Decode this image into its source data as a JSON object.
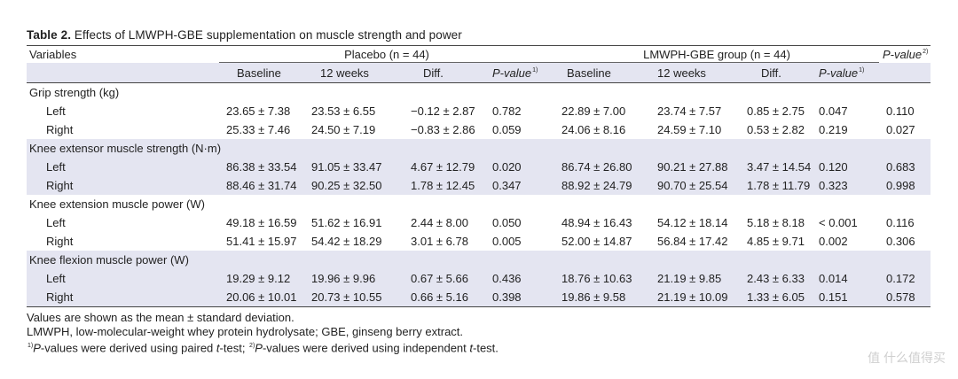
{
  "caption": {
    "label": "Table 2.",
    "text": " Effects of LMWPH-GBE supplementation on muscle strength and power"
  },
  "header": {
    "variables": "Variables",
    "placebo_group": "Placebo (n = 44)",
    "lmwph_group": "LMWPH-GBE group (n = 44)",
    "pvalue_main": "P-value",
    "pvalue_main_sup": "2)",
    "sub": {
      "baseline": "Baseline",
      "weeks12": "12 weeks",
      "diff": "Diff.",
      "pvalue": "P-value",
      "pvalue_sup": "1)"
    }
  },
  "sections": [
    {
      "title": "Grip strength (kg)",
      "rows": [
        {
          "label": "Left",
          "cells": [
            "23.65 ± 7.38",
            "23.53 ± 6.55",
            "−0.12 ± 2.87",
            "0.782",
            "22.89 ± 7.00",
            "23.74 ± 7.57",
            "0.85 ± 2.75",
            "0.047",
            "0.110"
          ]
        },
        {
          "label": "Right",
          "cells": [
            "25.33 ± 7.46",
            "24.50 ± 7.19",
            "−0.83 ± 2.86",
            "0.059",
            "24.06 ± 8.16",
            "24.59 ± 7.10",
            "0.53 ± 2.82",
            "0.219",
            "0.027"
          ]
        }
      ]
    },
    {
      "title": "Knee extensor muscle strength (N·m)",
      "rows": [
        {
          "label": "Left",
          "cells": [
            "86.38 ± 33.54",
            "91.05 ± 33.47",
            "4.67 ± 12.79",
            "0.020",
            "86.74 ± 26.80",
            "90.21 ± 27.88",
            "3.47 ± 14.54",
            "0.120",
            "0.683"
          ]
        },
        {
          "label": "Right",
          "cells": [
            "88.46 ± 31.74",
            "90.25 ± 32.50",
            "1.78 ± 12.45",
            "0.347",
            "88.92 ± 24.79",
            "90.70 ± 25.54",
            "1.78 ± 11.79",
            "0.323",
            "0.998"
          ]
        }
      ]
    },
    {
      "title": "Knee extension muscle power (W)",
      "rows": [
        {
          "label": "Left",
          "cells": [
            "49.18 ± 16.59",
            "51.62 ± 16.91",
            "2.44 ± 8.00",
            "0.050",
            "48.94 ± 16.43",
            "54.12 ± 18.14",
            "5.18 ± 8.18",
            "< 0.001",
            "0.116"
          ]
        },
        {
          "label": "Right",
          "cells": [
            "51.41 ± 15.97",
            "54.42 ± 18.29",
            "3.01 ± 6.78",
            "0.005",
            "52.00 ± 14.87",
            "56.84 ± 17.42",
            "4.85 ± 9.71",
            "0.002",
            "0.306"
          ]
        }
      ]
    },
    {
      "title": "Knee flexion muscle power (W)",
      "rows": [
        {
          "label": "Left",
          "cells": [
            "19.29 ± 9.12",
            "19.96 ± 9.96",
            "0.67 ± 5.66",
            "0.436",
            "18.76 ± 10.63",
            "21.19 ± 9.85",
            "2.43 ± 6.33",
            "0.014",
            "0.172"
          ]
        },
        {
          "label": "Right",
          "cells": [
            "20.06 ± 10.01",
            "20.73 ± 10.55",
            "0.66 ± 5.16",
            "0.398",
            "19.86 ± 9.58",
            "21.19 ± 10.09",
            "1.33 ± 6.05",
            "0.151",
            "0.578"
          ]
        }
      ]
    }
  ],
  "footnotes": {
    "line1": "Values are shown as the mean ± standard deviation.",
    "line2": "LMWPH, low-molecular-weight whey protein hydrolysate; GBE, ginseng berry extract.",
    "line3_sup1": "1)",
    "line3_p1": "P",
    "line3_a": "-values were derived using paired ",
    "line3_t1": "t",
    "line3_b": "-test; ",
    "line3_sup2": "2)",
    "line3_p2": "P",
    "line3_c": "-values were derived using independent ",
    "line3_t2": "t",
    "line3_d": "-test."
  },
  "watermark": "值 什么值得买"
}
